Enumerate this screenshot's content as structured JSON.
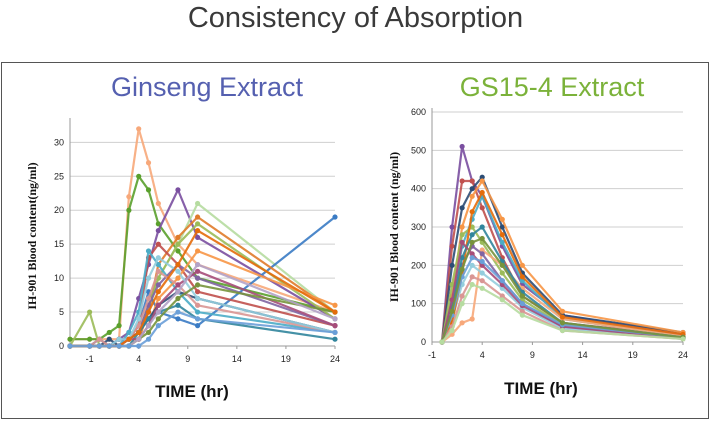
{
  "page": {
    "title": "Consistency of Absorption"
  },
  "chart_data": [
    {
      "type": "line",
      "title": "Ginseng Extract",
      "title_color": "#5560b0",
      "ylabel": "IH-901 Blood content(ng/ml)",
      "xlabel": "TIME (hr)",
      "x_ticks": [
        -1,
        4,
        9,
        14,
        19,
        24
      ],
      "y_ticks": [
        0,
        5,
        10,
        15,
        20,
        25,
        30
      ],
      "xlim": [
        -3,
        24
      ],
      "ylim": [
        0,
        33
      ],
      "grid": true,
      "x": [
        -3,
        -1,
        0,
        1,
        2,
        3,
        4,
        5,
        6,
        8,
        10,
        24
      ],
      "series": [
        {
          "color": "#f7a87a",
          "values": [
            1,
            1,
            1,
            1,
            1,
            22,
            32,
            27,
            21,
            15,
            12,
            5
          ]
        },
        {
          "color": "#5aa02c",
          "values": [
            1,
            1,
            1,
            2,
            3,
            20,
            25,
            23,
            18,
            14,
            10,
            5
          ]
        },
        {
          "color": "#7a4fa0",
          "values": [
            0,
            0,
            0,
            0,
            1,
            2,
            7,
            12,
            17,
            23,
            16,
            4
          ]
        },
        {
          "color": "#b6dca0",
          "values": [
            0,
            0,
            0,
            0,
            0,
            1,
            2,
            5,
            10,
            15,
            21,
            5
          ]
        },
        {
          "color": "#3a7bc4",
          "values": [
            0,
            0,
            1,
            0,
            1,
            1,
            3,
            8,
            5,
            4,
            3,
            19
          ]
        },
        {
          "color": "#e07b2a",
          "values": [
            0,
            0,
            0,
            0,
            0,
            0,
            1,
            5,
            12,
            16,
            19,
            5
          ]
        },
        {
          "color": "#c0504d",
          "values": [
            0,
            0,
            0,
            0,
            0,
            1,
            3,
            13,
            15,
            12,
            8,
            3
          ]
        },
        {
          "color": "#9bbb59",
          "values": [
            0,
            5,
            0,
            0,
            0,
            1,
            2,
            6,
            10,
            15,
            18,
            4
          ]
        },
        {
          "color": "#4bacc6",
          "values": [
            0,
            0,
            0,
            0,
            0,
            2,
            5,
            14,
            12,
            8,
            5,
            2
          ]
        },
        {
          "color": "#8064a2",
          "values": [
            0,
            0,
            0,
            0,
            1,
            1,
            2,
            6,
            9,
            12,
            10,
            3
          ]
        },
        {
          "color": "#f79646",
          "values": [
            0,
            0,
            0,
            0,
            0,
            0,
            1,
            3,
            7,
            10,
            14,
            6
          ]
        },
        {
          "color": "#2c4d75",
          "values": [
            0,
            0,
            0,
            1,
            0,
            1,
            2,
            4,
            6,
            8,
            7,
            2
          ]
        },
        {
          "color": "#d99694",
          "values": [
            0,
            0,
            1,
            0,
            0,
            1,
            3,
            7,
            11,
            9,
            6,
            2
          ]
        },
        {
          "color": "#31859c",
          "values": [
            0,
            0,
            0,
            0,
            0,
            0,
            2,
            4,
            5,
            6,
            4,
            1
          ]
        },
        {
          "color": "#a64d79",
          "values": [
            0,
            0,
            0,
            0,
            0,
            1,
            1,
            3,
            6,
            9,
            11,
            3
          ]
        },
        {
          "color": "#93cddd",
          "values": [
            0,
            0,
            0,
            0,
            1,
            1,
            4,
            10,
            13,
            11,
            7,
            2
          ]
        },
        {
          "color": "#77933c",
          "values": [
            0,
            0,
            0,
            0,
            0,
            0,
            1,
            2,
            4,
            7,
            9,
            5
          ]
        },
        {
          "color": "#b3a2c7",
          "values": [
            0,
            0,
            0,
            0,
            0,
            0,
            1,
            3,
            5,
            8,
            12,
            4
          ]
        },
        {
          "color": "#e46c0a",
          "values": [
            0,
            0,
            0,
            0,
            0,
            1,
            2,
            5,
            8,
            12,
            17,
            5
          ]
        },
        {
          "color": "#6a9fd8",
          "values": [
            0,
            0,
            0,
            0,
            0,
            0,
            0,
            1,
            3,
            5,
            4,
            2
          ]
        }
      ]
    },
    {
      "type": "line",
      "title": "GS15-4 Extract",
      "title_color": "#7bb23a",
      "ylabel": "IH-901 Blood content (ng/ml)",
      "xlabel": "TIME (hr)",
      "x_ticks": [
        -1,
        4,
        9,
        14,
        19,
        24
      ],
      "y_ticks": [
        0,
        100,
        200,
        300,
        400,
        500,
        600
      ],
      "xlim": [
        -1,
        24
      ],
      "ylim": [
        0,
        600
      ],
      "grid": true,
      "x": [
        0,
        1,
        2,
        3,
        4,
        6,
        8,
        12,
        24
      ],
      "series": [
        {
          "color": "#7a4fa0",
          "values": [
            0,
            300,
            510,
            420,
            380,
            250,
            150,
            70,
            20
          ]
        },
        {
          "color": "#c0504d",
          "values": [
            0,
            250,
            420,
            420,
            350,
            220,
            120,
            50,
            15
          ]
        },
        {
          "color": "#2c4d75",
          "values": [
            0,
            200,
            350,
            400,
            430,
            300,
            180,
            70,
            25
          ]
        },
        {
          "color": "#f79646",
          "values": [
            0,
            120,
            300,
            380,
            420,
            320,
            200,
            80,
            25
          ]
        },
        {
          "color": "#4bacc6",
          "values": [
            0,
            100,
            250,
            320,
            380,
            260,
            160,
            60,
            15
          ]
        },
        {
          "color": "#9bbb59",
          "values": [
            0,
            150,
            280,
            300,
            260,
            180,
            110,
            45,
            10
          ]
        },
        {
          "color": "#f7a87a",
          "values": [
            0,
            20,
            50,
            60,
            240,
            200,
            140,
            60,
            15
          ]
        },
        {
          "color": "#8064a2",
          "values": [
            0,
            80,
            200,
            250,
            230,
            160,
            100,
            40,
            10
          ]
        },
        {
          "color": "#93cddd",
          "values": [
            0,
            60,
            150,
            200,
            180,
            140,
            90,
            35,
            8
          ]
        },
        {
          "color": "#e46c0a",
          "values": [
            0,
            50,
            180,
            340,
            390,
            280,
            170,
            65,
            20
          ]
        },
        {
          "color": "#31859c",
          "values": [
            0,
            90,
            220,
            280,
            300,
            210,
            130,
            50,
            12
          ]
        },
        {
          "color": "#a64d79",
          "values": [
            0,
            110,
            260,
            230,
            200,
            150,
            95,
            40,
            10
          ]
        },
        {
          "color": "#6a9fd8",
          "values": [
            0,
            70,
            170,
            220,
            210,
            160,
            100,
            45,
            12
          ]
        },
        {
          "color": "#d99694",
          "values": [
            0,
            40,
            120,
            170,
            160,
            120,
            80,
            30,
            8
          ]
        },
        {
          "color": "#77933c",
          "values": [
            0,
            80,
            190,
            260,
            270,
            200,
            120,
            50,
            12
          ]
        },
        {
          "color": "#b6dca0",
          "values": [
            0,
            30,
            100,
            150,
            140,
            110,
            70,
            30,
            8
          ]
        }
      ]
    }
  ]
}
